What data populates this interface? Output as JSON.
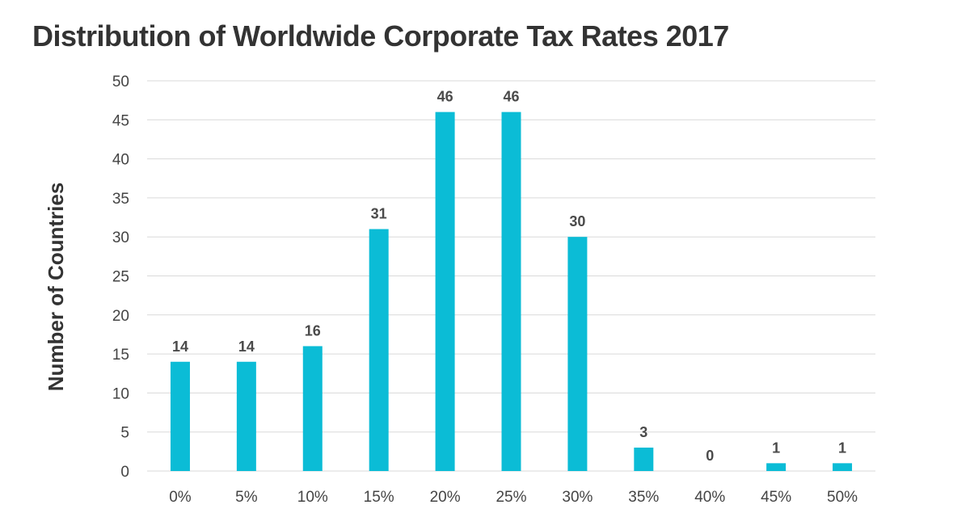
{
  "chart_data": {
    "type": "bar",
    "title": "Distribution of Worldwide Corporate Tax Rates 2017",
    "xlabel": "",
    "ylabel": "Number of Countries",
    "categories": [
      "0%",
      "5%",
      "10%",
      "15%",
      "20%",
      "25%",
      "30%",
      "35%",
      "40%",
      "45%",
      "50%"
    ],
    "values": [
      14,
      14,
      16,
      31,
      46,
      46,
      30,
      3,
      0,
      1,
      1
    ],
    "ylim": [
      0,
      50
    ],
    "yticks": [
      0,
      5,
      10,
      15,
      20,
      25,
      30,
      35,
      40,
      45,
      50
    ],
    "grid": true,
    "data_labels": true,
    "bar_color": "#0bbcd6",
    "grid_color": "#d9d9d9"
  }
}
